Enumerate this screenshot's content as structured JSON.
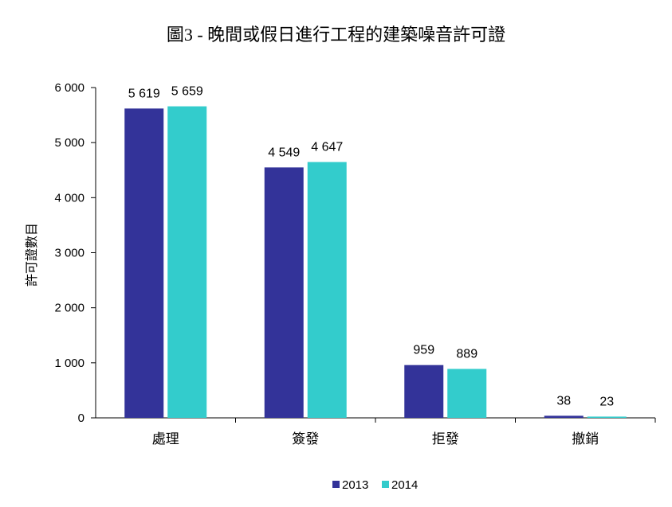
{
  "chart_data": {
    "type": "bar",
    "title": "圖3 - 晚間或假日進行工程的建築噪音許可證",
    "xlabel": "",
    "ylabel": "許可證數目",
    "categories": [
      "處理",
      "簽發",
      "拒發",
      "撤銷"
    ],
    "series": [
      {
        "name": "2013",
        "values": [
          5619,
          4549,
          959,
          38
        ],
        "labels": [
          "5 619",
          "4 549",
          "959",
          "38"
        ],
        "color": "#333399"
      },
      {
        "name": "2014",
        "values": [
          5659,
          4647,
          889,
          23
        ],
        "labels": [
          "5 659",
          "4 647",
          "889",
          "23"
        ],
        "color": "#33CCCC"
      }
    ],
    "ylim": [
      0,
      6000
    ],
    "yticks": [
      0,
      1000,
      2000,
      3000,
      4000,
      5000,
      6000
    ],
    "ytick_labels": [
      "0",
      "1 000",
      "2 000",
      "3 000",
      "4 000",
      "5 000",
      "6 000"
    ],
    "grid": false,
    "legend": "bottom"
  }
}
